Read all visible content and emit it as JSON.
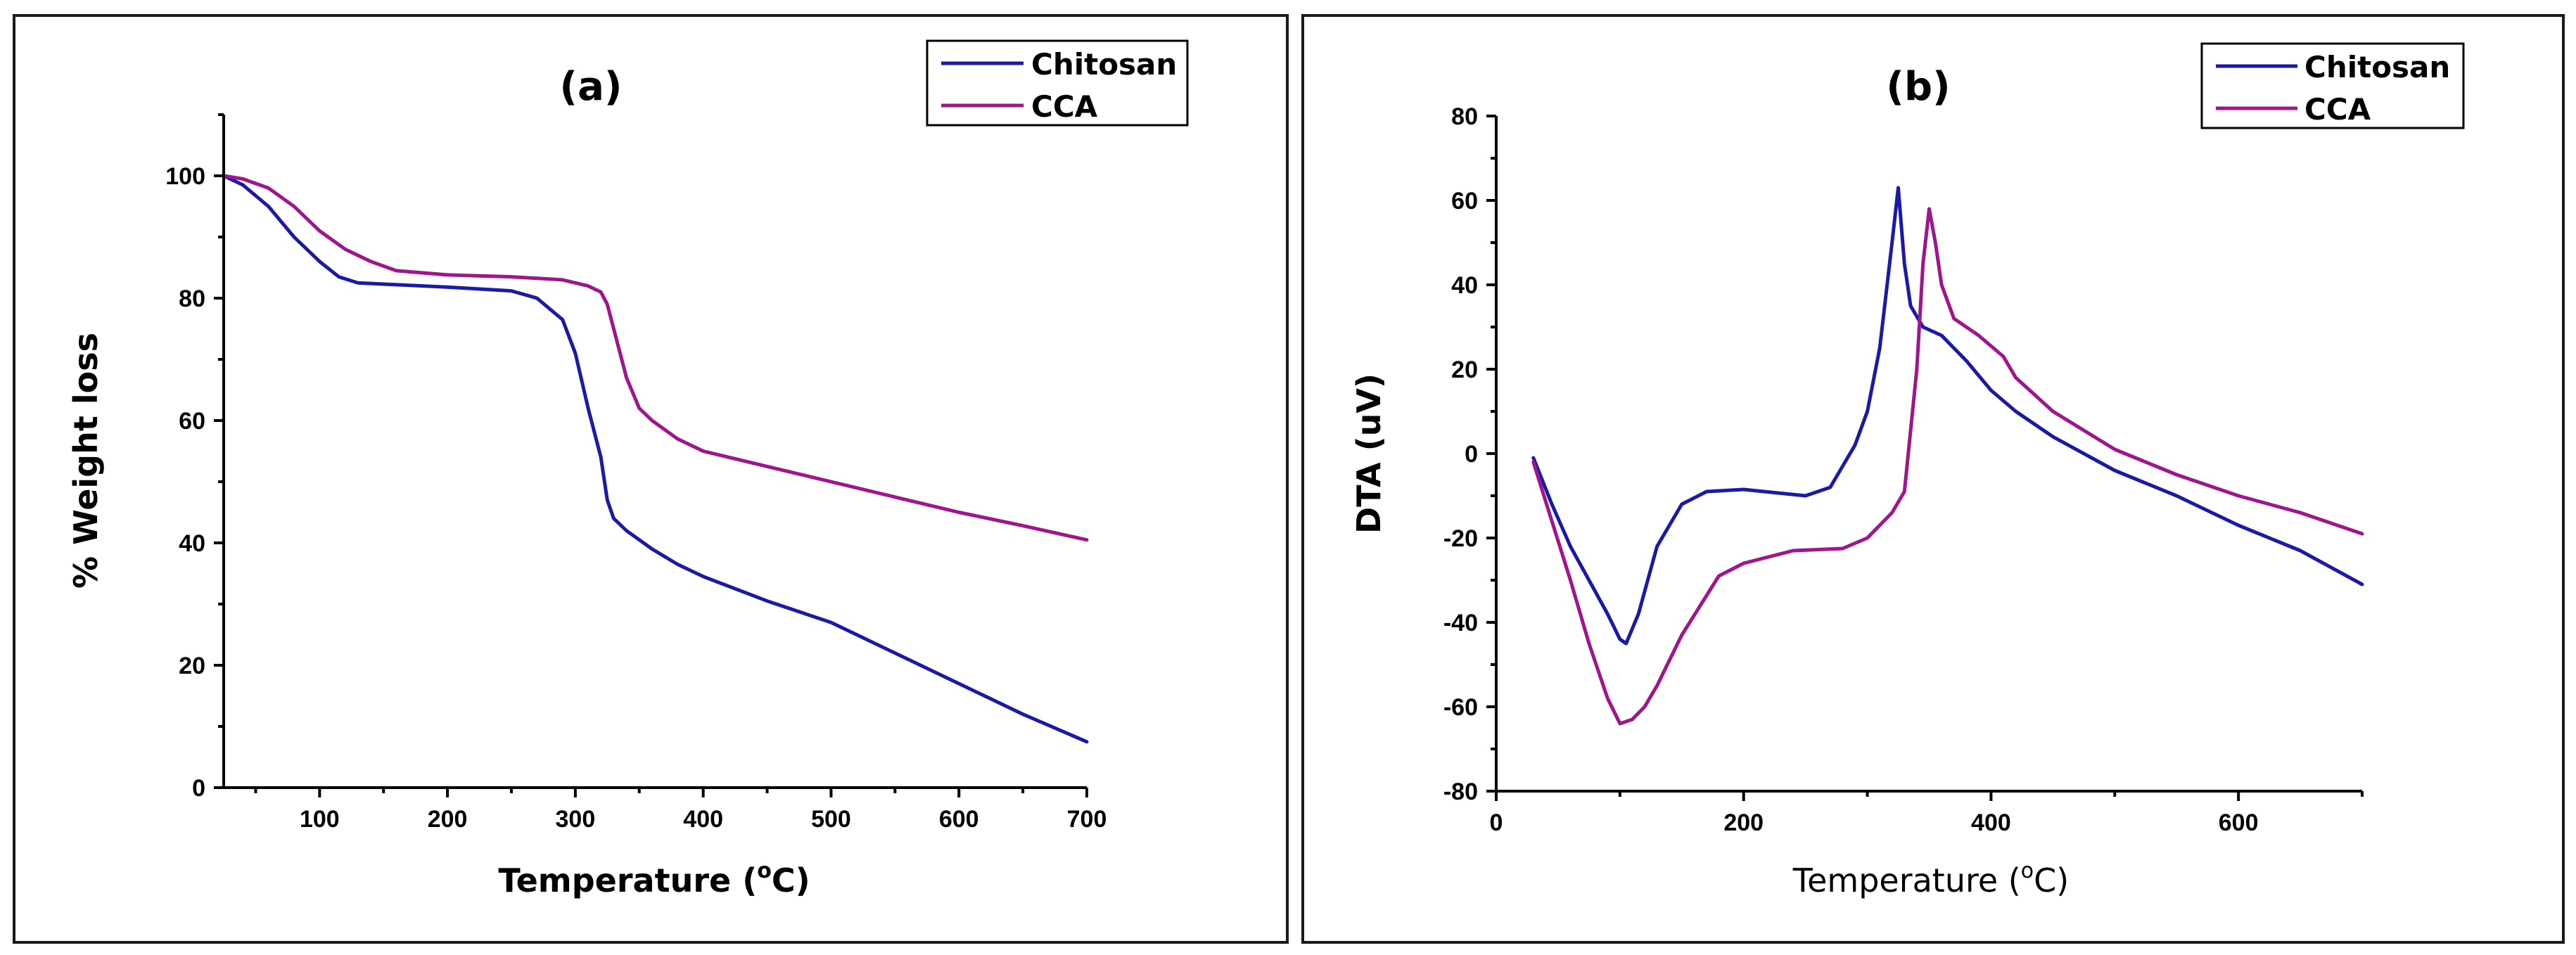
{
  "chart_data": [
    {
      "type": "line",
      "title": "(a)",
      "xlabel": "Temperature (°C)",
      "xlabel_parts": {
        "main": "Temperature (",
        "sup": "o",
        "tail": "C)"
      },
      "ylabel": "% Weight loss",
      "xlim": [
        25,
        700
      ],
      "ylim": [
        0,
        110
      ],
      "xticks": [
        100,
        200,
        300,
        400,
        500,
        600,
        700
      ],
      "yticks": [
        0,
        20,
        40,
        60,
        80,
        100
      ],
      "legend": "top-right",
      "colors": {
        "Chitosan": "#1a1aa6",
        "CCA": "#a0158e"
      },
      "series": [
        {
          "name": "Chitosan",
          "x": [
            25,
            40,
            60,
            80,
            100,
            115,
            130,
            150,
            200,
            250,
            270,
            290,
            300,
            310,
            320,
            325,
            330,
            340,
            360,
            380,
            400,
            450,
            500,
            550,
            600,
            650,
            700
          ],
          "y": [
            100,
            98.5,
            95,
            90,
            86,
            83.5,
            82.5,
            82.3,
            81.8,
            81.2,
            80,
            76.5,
            71,
            62,
            54,
            47,
            44,
            42,
            39,
            36.5,
            34.5,
            30.5,
            27,
            22,
            17,
            12,
            7.5
          ]
        },
        {
          "name": "CCA",
          "x": [
            25,
            40,
            60,
            80,
            100,
            120,
            140,
            160,
            200,
            250,
            290,
            310,
            320,
            325,
            330,
            340,
            350,
            360,
            380,
            400,
            450,
            500,
            550,
            600,
            650,
            700
          ],
          "y": [
            100,
            99.5,
            98,
            95,
            91,
            88,
            86,
            84.5,
            83.8,
            83.5,
            83,
            82,
            81,
            79,
            75,
            67,
            62,
            60,
            57,
            55,
            52.5,
            50,
            47.5,
            45,
            42.8,
            40.5
          ]
        }
      ]
    },
    {
      "type": "line",
      "title": "(b)",
      "xlabel": "Temperature (°C)",
      "xlabel_parts": {
        "main": "Temperature (",
        "sup": "o",
        "tail": "C)"
      },
      "ylabel": "DTA (uV)",
      "xlim": [
        0,
        700
      ],
      "ylim": [
        -80,
        80
      ],
      "xticks": [
        0,
        200,
        400,
        600
      ],
      "yticks": [
        -80,
        -60,
        -40,
        -20,
        0,
        20,
        40,
        60,
        80
      ],
      "legend": "top-right",
      "colors": {
        "Chitosan": "#1a1aa6",
        "CCA": "#a0158e"
      },
      "series": [
        {
          "name": "Chitosan",
          "x": [
            30,
            45,
            60,
            75,
            90,
            100,
            105,
            115,
            130,
            150,
            170,
            200,
            250,
            270,
            290,
            300,
            310,
            320,
            325,
            330,
            335,
            345,
            360,
            380,
            400,
            420,
            450,
            500,
            550,
            600,
            650,
            700
          ],
          "y": [
            -1,
            -12,
            -22,
            -30,
            -38,
            -44,
            -45,
            -38,
            -22,
            -12,
            -9,
            -8.5,
            -10,
            -8,
            2,
            10,
            25,
            50,
            63,
            45,
            35,
            30,
            28,
            22,
            15,
            10,
            4,
            -4,
            -10,
            -17,
            -23,
            -31
          ]
        },
        {
          "name": "CCA",
          "x": [
            30,
            45,
            60,
            75,
            90,
            100,
            110,
            120,
            130,
            150,
            180,
            200,
            240,
            280,
            300,
            320,
            330,
            340,
            345,
            350,
            355,
            360,
            370,
            390,
            410,
            420,
            450,
            500,
            550,
            600,
            650,
            700
          ],
          "y": [
            -2,
            -16,
            -30,
            -45,
            -58,
            -64,
            -63,
            -60,
            -55,
            -43,
            -29,
            -26,
            -23,
            -22.5,
            -20,
            -14,
            -9,
            20,
            45,
            58,
            50,
            40,
            32,
            28,
            23,
            18,
            10,
            1,
            -5,
            -10,
            -14,
            -19
          ]
        }
      ]
    }
  ]
}
